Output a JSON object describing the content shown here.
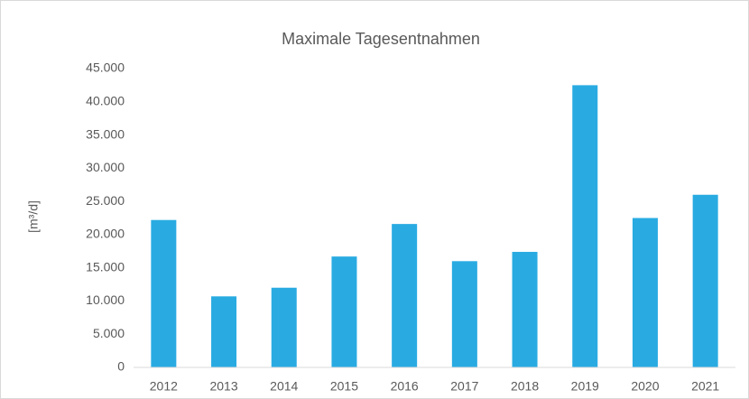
{
  "chart_data": {
    "type": "bar",
    "title": "Maximale Tagesentnahmen",
    "y_label": "[m³/d]",
    "categories": [
      "2012",
      "2013",
      "2014",
      "2015",
      "2016",
      "2017",
      "2018",
      "2019",
      "2020",
      "2021"
    ],
    "values": [
      22200,
      10700,
      12000,
      16700,
      21600,
      16000,
      17400,
      42500,
      22500,
      26000
    ],
    "color": "#29abe2",
    "ylim": [
      0,
      45000
    ],
    "yticks": [
      0,
      {
        "value": 5000,
        "label": "5.000"
      },
      {
        "value": 10000,
        "label": "10.000"
      },
      {
        "value": 15000,
        "label": "15.000"
      },
      {
        "value": 20000,
        "label": "20.000"
      },
      {
        "value": 25000,
        "label": "25.000"
      },
      {
        "value": 30000,
        "label": "30.000"
      },
      {
        "value": 35000,
        "label": "35.000"
      },
      {
        "value": 40000,
        "label": "40.000"
      },
      {
        "value": 45000,
        "label": "45.000"
      }
    ],
    "grid": false
  }
}
